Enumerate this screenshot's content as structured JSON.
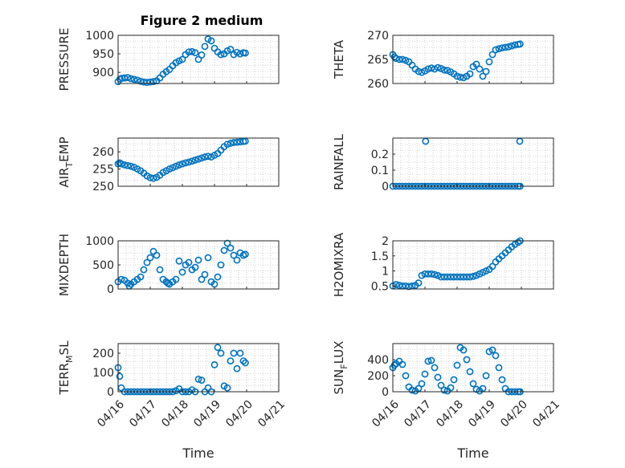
{
  "figure_title": "Figure 2 medium",
  "colors": {
    "marker": "#0072BD",
    "axis": "#262626",
    "grid": "#b0b0b0"
  },
  "x_tick_labels": [
    "04/16",
    "04/17",
    "04/18",
    "04/19",
    "04/20",
    "04/21"
  ],
  "chart_data": [
    {
      "type": "scatter",
      "ylabel": "PRESSURE",
      "ylim": [
        870,
        1000
      ],
      "yticks": [
        900,
        950,
        1000
      ],
      "xlabel": "",
      "grid": true,
      "x": [
        0.0,
        0.06,
        0.12,
        0.2,
        0.3,
        0.4,
        0.5,
        0.6,
        0.7,
        0.8,
        0.9,
        1.0,
        1.1,
        1.2,
        1.3,
        1.4,
        1.5,
        1.6,
        1.7,
        1.8,
        1.9,
        2.0,
        2.1,
        2.2,
        2.3,
        2.4,
        2.5,
        2.6,
        2.7,
        2.8,
        2.9,
        3.0,
        3.1,
        3.2,
        3.3,
        3.4,
        3.5,
        3.6,
        3.7,
        3.8,
        3.9,
        3.96
      ],
      "y": [
        875,
        882,
        884,
        885,
        886,
        883,
        881,
        879,
        876,
        874,
        873,
        874,
        875,
        877,
        885,
        895,
        902,
        908,
        918,
        926,
        931,
        935,
        948,
        955,
        956,
        953,
        935,
        947,
        970,
        990,
        985,
        965,
        955,
        948,
        950,
        958,
        962,
        948,
        954,
        950,
        953,
        952
      ]
    },
    {
      "type": "scatter",
      "ylabel": "THETA",
      "ylim": [
        260,
        270
      ],
      "yticks": [
        260,
        265,
        270
      ],
      "xlabel": "",
      "grid": true,
      "x": [
        0.0,
        0.05,
        0.1,
        0.2,
        0.3,
        0.4,
        0.5,
        0.6,
        0.7,
        0.8,
        0.9,
        1.0,
        1.1,
        1.2,
        1.3,
        1.4,
        1.5,
        1.6,
        1.7,
        1.8,
        1.9,
        2.0,
        2.1,
        2.2,
        2.3,
        2.4,
        2.5,
        2.6,
        2.7,
        2.8,
        2.9,
        3.0,
        3.1,
        3.2,
        3.3,
        3.4,
        3.5,
        3.6,
        3.7,
        3.8,
        3.9,
        3.96
      ],
      "y": [
        266,
        265.5,
        265.2,
        265,
        265,
        264.8,
        264.5,
        263.8,
        263,
        262.5,
        262.3,
        262.6,
        263,
        263.2,
        263,
        263.3,
        263.1,
        262.8,
        262.7,
        262.4,
        262,
        261.5,
        261.3,
        261.2,
        261.5,
        262,
        263.5,
        264,
        263,
        261.5,
        262.5,
        264.5,
        266,
        267,
        267.2,
        267.4,
        267.5,
        267.6,
        267.8,
        268,
        268.1,
        268.2
      ]
    },
    {
      "type": "scatter",
      "ylabel": "AIR_TEMP",
      "ylim": [
        250,
        264
      ],
      "yticks": [
        250,
        255,
        260
      ],
      "xlabel": "",
      "grid": true,
      "x": [
        0.0,
        0.05,
        0.1,
        0.2,
        0.3,
        0.4,
        0.5,
        0.6,
        0.7,
        0.8,
        0.9,
        1.0,
        1.1,
        1.2,
        1.3,
        1.4,
        1.5,
        1.6,
        1.7,
        1.8,
        1.9,
        2.0,
        2.1,
        2.2,
        2.3,
        2.4,
        2.5,
        2.6,
        2.7,
        2.8,
        2.9,
        3.0,
        3.1,
        3.2,
        3.3,
        3.4,
        3.5,
        3.6,
        3.7,
        3.8,
        3.9,
        3.96
      ],
      "y": [
        256.5,
        256.8,
        256.5,
        256.2,
        256,
        255.8,
        255.5,
        255,
        254.5,
        253.8,
        253,
        252.5,
        252.3,
        252.6,
        253.2,
        254,
        254.5,
        255,
        255.4,
        255.8,
        256.2,
        256.5,
        256.8,
        257,
        257.3,
        257.6,
        257.9,
        258.2,
        258.5,
        258.7,
        258.5,
        259,
        259.5,
        260.5,
        261.5,
        262.2,
        262.5,
        262.7,
        262.8,
        262.9,
        263,
        263.1
      ]
    },
    {
      "type": "scatter",
      "ylabel": "RAINFALL",
      "ylim": [
        0,
        0.3
      ],
      "yticks": [
        0,
        0.1,
        0.2
      ],
      "xlabel": "",
      "grid": true,
      "x": [
        0.0,
        0.1,
        0.2,
        0.3,
        0.4,
        0.5,
        0.6,
        0.7,
        0.8,
        0.9,
        1.0,
        1.1,
        1.2,
        1.3,
        1.4,
        1.5,
        1.6,
        1.7,
        1.8,
        1.9,
        2.0,
        2.1,
        2.2,
        2.3,
        2.4,
        2.5,
        2.6,
        2.7,
        2.8,
        2.9,
        3.0,
        3.1,
        3.2,
        3.3,
        3.4,
        3.5,
        3.6,
        3.7,
        3.8,
        3.9,
        3.96,
        1.02,
        3.95
      ],
      "y": [
        0,
        0,
        0,
        0,
        0,
        0,
        0,
        0,
        0,
        0,
        0,
        0,
        0,
        0,
        0,
        0,
        0,
        0,
        0,
        0,
        0,
        0,
        0,
        0,
        0,
        0,
        0,
        0,
        0,
        0,
        0,
        0,
        0,
        0,
        0,
        0,
        0,
        0,
        0,
        0,
        0,
        0.28,
        0.28
      ]
    },
    {
      "type": "scatter",
      "ylabel": "MIXDEPTH",
      "ylim": [
        0,
        1000
      ],
      "yticks": [
        0,
        500,
        1000
      ],
      "xlabel": "",
      "grid": true,
      "x": [
        0.0,
        0.1,
        0.2,
        0.3,
        0.35,
        0.4,
        0.5,
        0.6,
        0.7,
        0.8,
        0.9,
        1.0,
        1.1,
        1.2,
        1.3,
        1.4,
        1.5,
        1.55,
        1.6,
        1.7,
        1.8,
        1.9,
        2.0,
        2.1,
        2.2,
        2.3,
        2.4,
        2.5,
        2.6,
        2.7,
        2.8,
        2.9,
        3.0,
        3.1,
        3.2,
        3.3,
        3.4,
        3.5,
        3.6,
        3.7,
        3.8,
        3.9,
        3.96
      ],
      "y": [
        150,
        200,
        180,
        120,
        60,
        100,
        150,
        200,
        250,
        400,
        550,
        650,
        780,
        700,
        400,
        200,
        150,
        120,
        100,
        150,
        200,
        580,
        350,
        500,
        550,
        400,
        450,
        600,
        200,
        300,
        650,
        150,
        100,
        250,
        500,
        800,
        950,
        850,
        700,
        600,
        750,
        700,
        720
      ]
    },
    {
      "type": "scatter",
      "ylabel": "H2OMIXRA",
      "ylim": [
        0.4,
        2
      ],
      "yticks": [
        0.5,
        1,
        1.5,
        2
      ],
      "xlabel": "",
      "grid": true,
      "x": [
        0.0,
        0.1,
        0.2,
        0.3,
        0.4,
        0.5,
        0.6,
        0.7,
        0.8,
        0.9,
        1.0,
        1.1,
        1.2,
        1.3,
        1.4,
        1.5,
        1.6,
        1.7,
        1.8,
        1.9,
        2.0,
        2.1,
        2.2,
        2.3,
        2.4,
        2.5,
        2.6,
        2.7,
        2.8,
        2.9,
        3.0,
        3.1,
        3.2,
        3.3,
        3.4,
        3.5,
        3.6,
        3.7,
        3.8,
        3.9,
        3.96
      ],
      "y": [
        0.5,
        0.55,
        0.52,
        0.5,
        0.5,
        0.48,
        0.5,
        0.52,
        0.6,
        0.85,
        0.9,
        0.9,
        0.9,
        0.88,
        0.85,
        0.8,
        0.8,
        0.8,
        0.8,
        0.8,
        0.8,
        0.8,
        0.8,
        0.8,
        0.8,
        0.82,
        0.85,
        0.9,
        0.95,
        1.0,
        1.05,
        1.15,
        1.3,
        1.4,
        1.5,
        1.6,
        1.7,
        1.8,
        1.88,
        1.95,
        2.0
      ]
    },
    {
      "type": "scatter",
      "ylabel": "TERR_MSL",
      "ylim": [
        0,
        250
      ],
      "yticks": [
        0,
        100,
        200
      ],
      "xlabel": "Time",
      "grid": true,
      "x": [
        0.0,
        0.05,
        0.1,
        0.2,
        0.3,
        0.4,
        0.5,
        0.6,
        0.7,
        0.8,
        0.9,
        1.0,
        1.1,
        1.2,
        1.3,
        1.4,
        1.5,
        1.6,
        1.7,
        1.8,
        1.9,
        2.0,
        2.1,
        2.2,
        2.3,
        2.4,
        2.5,
        2.6,
        2.7,
        2.8,
        2.9,
        3.0,
        3.1,
        3.2,
        3.3,
        3.4,
        3.5,
        3.6,
        3.7,
        3.8,
        3.9,
        3.96
      ],
      "y": [
        125,
        80,
        20,
        0,
        0,
        0,
        0,
        0,
        0,
        0,
        0,
        0,
        0,
        0,
        0,
        0,
        0,
        0,
        0,
        5,
        15,
        0,
        0,
        0,
        10,
        0,
        65,
        60,
        0,
        20,
        0,
        140,
        230,
        200,
        30,
        20,
        160,
        200,
        120,
        200,
        160,
        150
      ]
    },
    {
      "type": "scatter",
      "ylabel": "SUN_FLUX",
      "ylim": [
        0,
        600
      ],
      "yticks": [
        0,
        200,
        400
      ],
      "xlabel": "Time",
      "grid": true,
      "x": [
        0.0,
        0.05,
        0.1,
        0.2,
        0.3,
        0.4,
        0.5,
        0.6,
        0.7,
        0.8,
        0.9,
        1.0,
        1.1,
        1.2,
        1.3,
        1.4,
        1.5,
        1.6,
        1.7,
        1.8,
        1.9,
        2.0,
        2.1,
        2.2,
        2.3,
        2.4,
        2.5,
        2.6,
        2.7,
        2.8,
        2.9,
        3.0,
        3.1,
        3.2,
        3.3,
        3.4,
        3.5,
        3.6,
        3.7,
        3.8,
        3.9,
        3.96
      ],
      "y": [
        300,
        330,
        350,
        380,
        340,
        200,
        60,
        20,
        10,
        40,
        100,
        220,
        380,
        390,
        300,
        180,
        80,
        20,
        10,
        50,
        150,
        330,
        550,
        520,
        400,
        250,
        100,
        30,
        10,
        40,
        200,
        500,
        520,
        450,
        300,
        150,
        40,
        0,
        0,
        0,
        0,
        0
      ]
    }
  ]
}
